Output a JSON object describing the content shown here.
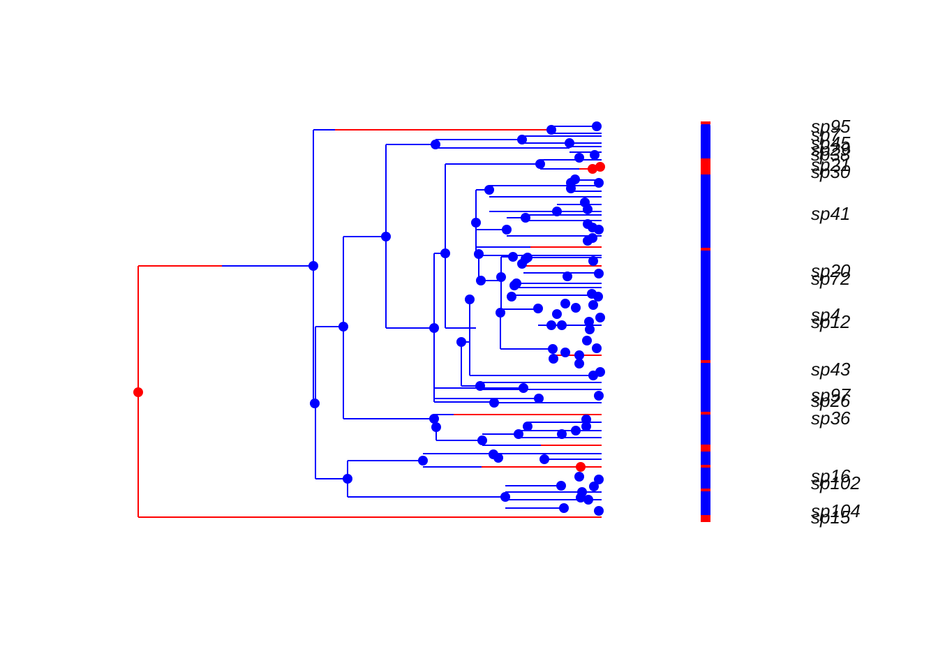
{
  "figure": {
    "type": "phylogenetic tree with discrete ancestral state reconstruction",
    "states": {
      "state_a": "#ff0000",
      "state_b": "#0000ff"
    }
  },
  "tip_labels_visible": [
    "sp95",
    "sp7",
    "sp45",
    "sp29",
    "sp38",
    "sp21",
    "sp30",
    "sp41",
    "sp20",
    "sp72",
    "sp4",
    "sp12",
    "sp43",
    "sp97",
    "sp26",
    "sp36",
    "sp16",
    "sp102",
    "sp104",
    "sp15"
  ]
}
